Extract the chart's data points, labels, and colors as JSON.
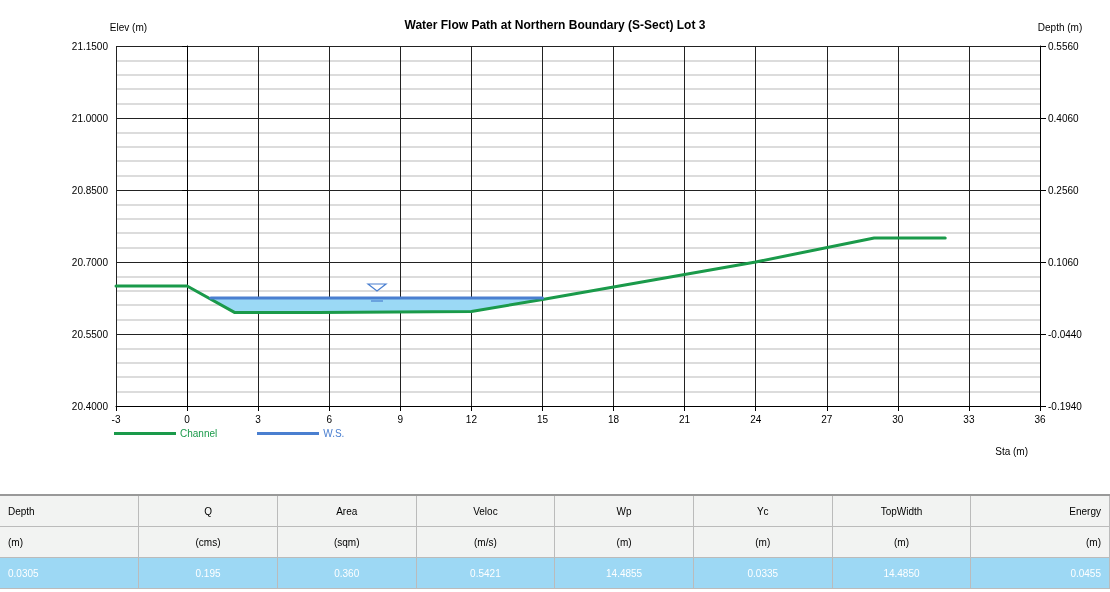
{
  "chart_data": [
    {
      "type": "line",
      "title": "Water Flow Path at Northern Boundary (S-Sect) Lot 3",
      "xlabel": "Sta (m)",
      "ylabel": "Elev (m)",
      "y2label": "Depth (m)",
      "series": [
        {
          "name": "Channel",
          "color": "#1a9a4a",
          "x": [
            -3,
            0,
            2,
            5.5,
            12,
            15,
            24,
            29,
            32
          ],
          "values": [
            20.65,
            20.65,
            20.595,
            20.595,
            20.597,
            20.622,
            20.7,
            20.75,
            20.75
          ]
        },
        {
          "name": "W.S.",
          "color": "#4a7fd0",
          "x": [
            1,
            2,
            12,
            15
          ],
          "values": [
            20.625,
            20.625,
            20.625,
            20.625
          ],
          "lower": [
            20.625,
            20.595,
            20.597,
            20.622
          ],
          "upper": [
            20.625,
            20.625,
            20.625,
            20.625
          ]
        }
      ],
      "xlim": [
        -3,
        36
      ],
      "xticks": [
        -3,
        0,
        3,
        6,
        9,
        12,
        15,
        18,
        21,
        24,
        27,
        30,
        33,
        36
      ],
      "ylim": [
        20.4,
        21.15
      ],
      "yticks": [
        {
          "value": 20.4,
          "label": "20.4000"
        },
        {
          "value": 20.55,
          "label": "20.5500"
        },
        {
          "value": 20.7,
          "label": "20.7000"
        },
        {
          "value": 20.85,
          "label": "20.8500"
        },
        {
          "value": 21.0,
          "label": "21.0000"
        },
        {
          "value": 21.15,
          "label": "21.1500"
        }
      ],
      "y2lim": [
        -0.194,
        0.556
      ],
      "y2ticks": [
        {
          "value": -0.194,
          "label": "-0.1940"
        },
        {
          "value": -0.044,
          "label": "-0.0440"
        },
        {
          "value": 0.106,
          "label": "0.1060"
        },
        {
          "value": 0.256,
          "label": "0.2560"
        },
        {
          "value": 0.406,
          "label": "0.4060"
        },
        {
          "value": 0.556,
          "label": "0.5560"
        }
      ],
      "grid": true,
      "legend": "bottom left",
      "marker": "none",
      "line_style": "solid"
    },
    {
      "type": "other",
      "categories": [
        "Depth",
        "Q",
        "Area",
        "Veloc",
        "Wp",
        "Yc",
        "TopWidth",
        "Energy"
      ],
      "cell_labels": [
        [
          "(m)",
          "(cms)",
          "(sqm)",
          "(m/s)",
          "(m)",
          "(m)",
          "(m)",
          "(m)"
        ],
        [
          "0.0305",
          "0.195",
          "0.360",
          "0.5421",
          "14.4855",
          "0.0335",
          "14.4850",
          "0.0455"
        ]
      ]
    }
  ]
}
